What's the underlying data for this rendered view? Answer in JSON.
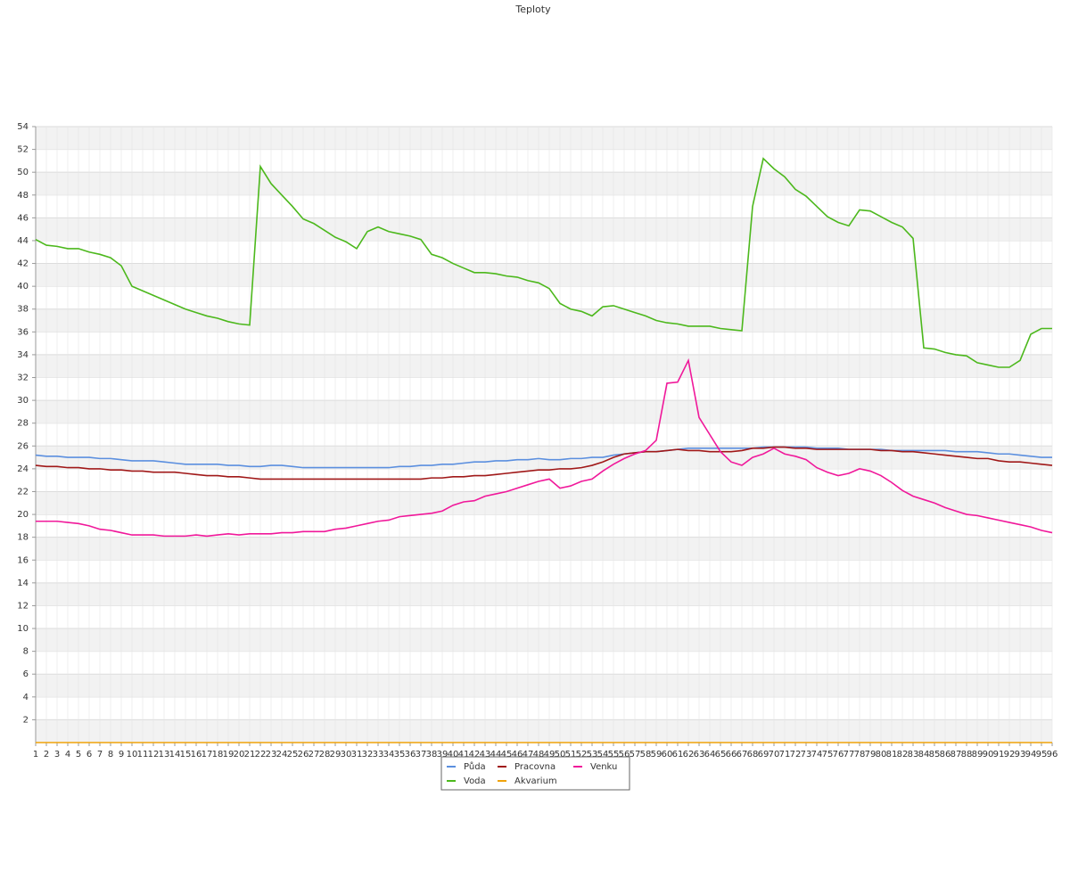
{
  "chart_data": {
    "type": "line",
    "title": "Teploty",
    "categories": [
      1,
      2,
      3,
      4,
      5,
      6,
      7,
      8,
      9,
      10,
      11,
      12,
      13,
      14,
      15,
      16,
      17,
      18,
      19,
      20,
      21,
      22,
      23,
      24,
      25,
      26,
      27,
      28,
      29,
      30,
      31,
      32,
      33,
      34,
      35,
      36,
      37,
      38,
      39,
      40,
      41,
      42,
      43,
      44,
      45,
      46,
      47,
      48,
      49,
      50,
      51,
      52,
      53,
      54,
      55,
      56,
      57,
      58,
      59,
      60,
      61,
      62,
      63,
      64,
      65,
      66,
      67,
      68,
      69,
      70,
      71,
      72,
      73,
      74,
      75,
      76,
      77,
      78,
      79,
      80,
      81,
      82,
      83,
      84,
      85,
      86,
      87,
      88,
      89,
      90,
      91,
      92,
      93,
      94,
      95,
      96
    ],
    "series": [
      {
        "name": "Půda",
        "color": "#5b8fdf",
        "values": [
          25.2,
          25.1,
          25.1,
          25.0,
          25.0,
          25.0,
          24.9,
          24.9,
          24.8,
          24.7,
          24.7,
          24.7,
          24.6,
          24.5,
          24.4,
          24.4,
          24.4,
          24.4,
          24.3,
          24.3,
          24.2,
          24.2,
          24.3,
          24.3,
          24.2,
          24.1,
          24.1,
          24.1,
          24.1,
          24.1,
          24.1,
          24.1,
          24.1,
          24.1,
          24.2,
          24.2,
          24.3,
          24.3,
          24.4,
          24.4,
          24.5,
          24.6,
          24.6,
          24.7,
          24.7,
          24.8,
          24.8,
          24.9,
          24.8,
          24.8,
          24.9,
          24.9,
          25.0,
          25.0,
          25.2,
          25.3,
          25.4,
          25.5,
          25.5,
          25.6,
          25.7,
          25.8,
          25.8,
          25.8,
          25.8,
          25.8,
          25.8,
          25.8,
          25.9,
          25.9,
          25.9,
          25.9,
          25.9,
          25.8,
          25.8,
          25.8,
          25.7,
          25.7,
          25.7,
          25.7,
          25.6,
          25.6,
          25.6,
          25.6,
          25.6,
          25.6,
          25.5,
          25.5,
          25.5,
          25.4,
          25.3,
          25.3,
          25.2,
          25.1,
          25.0,
          25.0
        ]
      },
      {
        "name": "Pracovna",
        "color": "#a01818",
        "values": [
          24.3,
          24.2,
          24.2,
          24.1,
          24.1,
          24.0,
          24.0,
          23.9,
          23.9,
          23.8,
          23.8,
          23.7,
          23.7,
          23.7,
          23.6,
          23.5,
          23.4,
          23.4,
          23.3,
          23.3,
          23.2,
          23.1,
          23.1,
          23.1,
          23.1,
          23.1,
          23.1,
          23.1,
          23.1,
          23.1,
          23.1,
          23.1,
          23.1,
          23.1,
          23.1,
          23.1,
          23.1,
          23.2,
          23.2,
          23.3,
          23.3,
          23.4,
          23.4,
          23.5,
          23.6,
          23.7,
          23.8,
          23.9,
          23.9,
          24.0,
          24.0,
          24.1,
          24.3,
          24.6,
          25.0,
          25.3,
          25.4,
          25.5,
          25.5,
          25.6,
          25.7,
          25.6,
          25.6,
          25.5,
          25.5,
          25.5,
          25.6,
          25.8,
          25.8,
          25.9,
          25.9,
          25.8,
          25.8,
          25.7,
          25.7,
          25.7,
          25.7,
          25.7,
          25.7,
          25.6,
          25.6,
          25.5,
          25.5,
          25.4,
          25.3,
          25.2,
          25.1,
          25.0,
          24.9,
          24.9,
          24.7,
          24.6,
          24.6,
          24.5,
          24.4,
          24.3
        ]
      },
      {
        "name": "Venku",
        "color": "#f0189a",
        "values": [
          19.4,
          19.4,
          19.4,
          19.3,
          19.2,
          19.0,
          18.7,
          18.6,
          18.4,
          18.2,
          18.2,
          18.2,
          18.1,
          18.1,
          18.1,
          18.2,
          18.1,
          18.2,
          18.3,
          18.2,
          18.3,
          18.3,
          18.3,
          18.4,
          18.4,
          18.5,
          18.5,
          18.5,
          18.7,
          18.8,
          19.0,
          19.2,
          19.4,
          19.5,
          19.8,
          19.9,
          20.0,
          20.1,
          20.3,
          20.8,
          21.1,
          21.2,
          21.6,
          21.8,
          22.0,
          22.3,
          22.6,
          22.9,
          23.1,
          22.3,
          22.5,
          22.9,
          23.1,
          23.8,
          24.4,
          24.9,
          25.3,
          25.6,
          26.5,
          31.5,
          31.6,
          33.5,
          28.5,
          27.0,
          25.5,
          24.6,
          24.3,
          25.0,
          25.3,
          25.8,
          25.3,
          25.1,
          24.8,
          24.1,
          23.7,
          23.4,
          23.6,
          24.0,
          23.8,
          23.4,
          22.8,
          22.1,
          21.6,
          21.3,
          21.0,
          20.6,
          20.3,
          20.0,
          19.9,
          19.7,
          19.5,
          19.3,
          19.1,
          18.9,
          18.6,
          18.4
        ]
      },
      {
        "name": "Voda",
        "color": "#4cb81c",
        "values": [
          44.1,
          43.6,
          43.5,
          43.3,
          43.3,
          43.0,
          42.8,
          42.5,
          41.8,
          40.0,
          39.6,
          39.2,
          38.8,
          38.4,
          38.0,
          37.7,
          37.4,
          37.2,
          36.9,
          36.7,
          36.6,
          50.5,
          49.0,
          48.0,
          47.0,
          45.9,
          45.5,
          44.9,
          44.3,
          43.9,
          43.3,
          44.8,
          45.2,
          44.8,
          44.6,
          44.4,
          44.1,
          42.8,
          42.5,
          42.0,
          41.6,
          41.2,
          41.2,
          41.1,
          40.9,
          40.8,
          40.5,
          40.3,
          39.8,
          38.5,
          38.0,
          37.8,
          37.4,
          38.2,
          38.3,
          38.0,
          37.7,
          37.4,
          37.0,
          36.8,
          36.7,
          36.5,
          36.5,
          36.5,
          36.3,
          36.2,
          36.1,
          47.0,
          51.2,
          50.3,
          49.6,
          48.5,
          47.9,
          47.0,
          46.1,
          45.6,
          45.3,
          46.7,
          46.6,
          46.1,
          45.6,
          45.2,
          44.2,
          34.6,
          34.5,
          34.2,
          34.0,
          33.9,
          33.3,
          33.1,
          32.9,
          32.9,
          33.5,
          35.8,
          36.3,
          36.3
        ]
      },
      {
        "name": "Akvarium",
        "color": "#f0a30a",
        "values": [
          0,
          0,
          0,
          0,
          0,
          0,
          0,
          0,
          0,
          0,
          0,
          0,
          0,
          0,
          0,
          0,
          0,
          0,
          0,
          0,
          0,
          0,
          0,
          0,
          0,
          0,
          0,
          0,
          0,
          0,
          0,
          0,
          0,
          0,
          0,
          0,
          0,
          0,
          0,
          0,
          0,
          0,
          0,
          0,
          0,
          0,
          0,
          0,
          0,
          0,
          0,
          0,
          0,
          0,
          0,
          0,
          0,
          0,
          0,
          0,
          0,
          0,
          0,
          0,
          0,
          0,
          0,
          0,
          0,
          0,
          0,
          0,
          0,
          0,
          0,
          0,
          0,
          0,
          0,
          0,
          0,
          0,
          0,
          0,
          0,
          0,
          0,
          0,
          0,
          0,
          0,
          0,
          0,
          0,
          0,
          0
        ]
      }
    ],
    "ylim": [
      0,
      54
    ],
    "yticks": [
      2,
      4,
      6,
      8,
      10,
      12,
      14,
      16,
      18,
      20,
      22,
      24,
      26,
      28,
      30,
      32,
      34,
      36,
      38,
      40,
      42,
      44,
      46,
      48,
      50,
      52,
      54
    ],
    "grid": true
  }
}
